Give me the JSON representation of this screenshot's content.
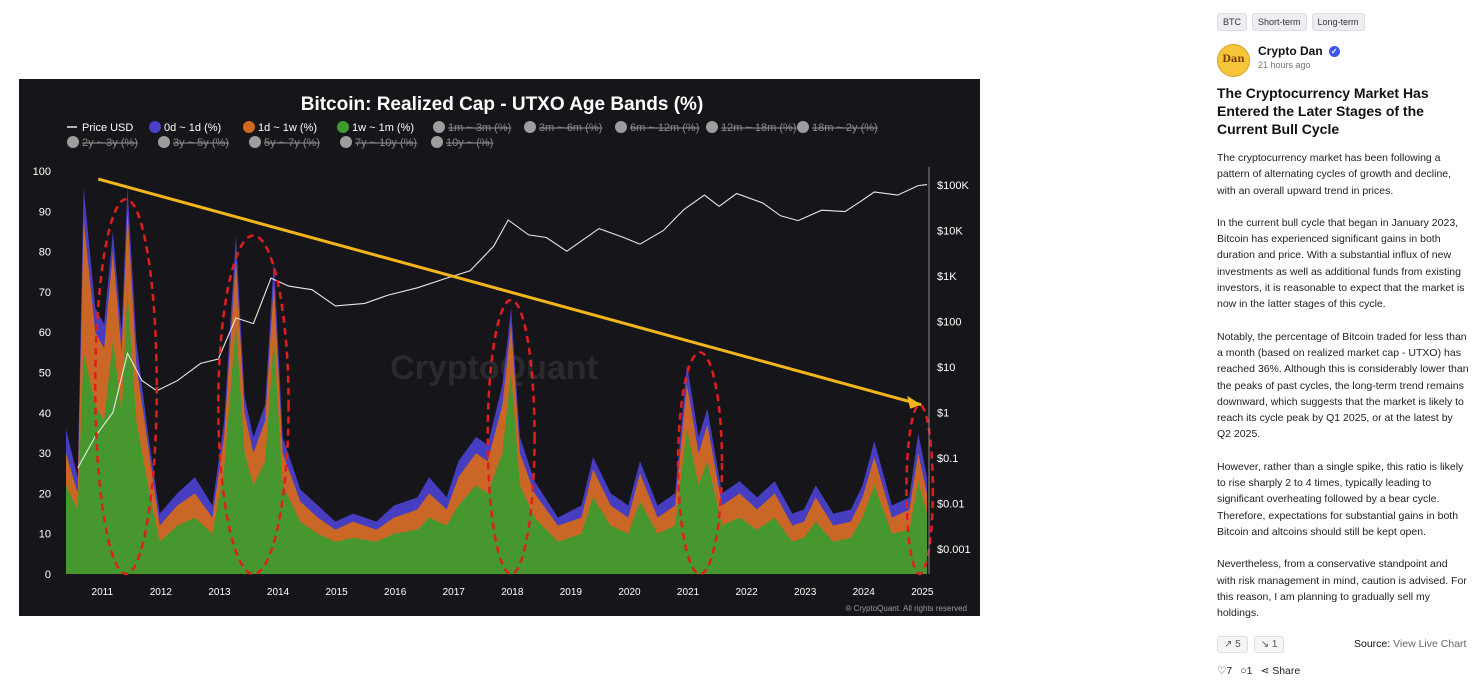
{
  "tags": [
    "BTC",
    "Short-term",
    "Long-term"
  ],
  "author": {
    "name": "Crypto Dan",
    "time": "21 hours ago",
    "avatar_text": "Dan"
  },
  "post_title": "The Cryptocurrency Market Has Entered the Later Stages of the Current Bull Cycle",
  "paragraphs": [
    "The cryptocurrency market has been following a pattern of alternating cycles of growth and decline, with an overall upward trend in prices.",
    "In the current bull cycle that began in January 2023, Bitcoin has experienced significant gains in both duration and price. With a substantial influx of new investments as well as additional funds from existing investors, it is reasonable to expect that the market is now in the latter stages of this cycle.",
    "Notably, the percentage of Bitcoin traded for less than a month (based on realized market cap - UTXO) has reached 36%. Although this is considerably lower than the peaks of past cycles, the long-term trend remains downward, which suggests that the market is likely to reach its cycle peak by Q1 2025, or at the latest by Q2 2025.",
    "However, rather than a single spike, this ratio is likely to rise sharply 2 to 4 times, typically leading to significant overheating followed by a bear cycle. Therefore, expectations for substantial gains in both Bitcoin and altcoins should still be kept open.",
    "Nevertheless, from a conservative standpoint and with risk management in mind, caution is advised. For this reason, I am planning to gradually sell my holdings."
  ],
  "votes": {
    "up": "5",
    "down": "1"
  },
  "source": {
    "label": "Source:",
    "link": "View Live Chart"
  },
  "actions": {
    "likes": "7",
    "comments": "1",
    "share": "Share"
  },
  "colors": {
    "price": "#e8e8e8",
    "band_0d_1d": "#4a3fc9",
    "band_1d_1w": "#d2691e",
    "band_1w_1m": "#3f9a2f",
    "trend": "#f2b51b",
    "circle": "#e01e1e"
  },
  "chart_data": {
    "type": "area",
    "title": "Bitcoin: Realized Cap - UTXO Age Bands (%)",
    "watermark": "CryptoQuant",
    "credit": "® CryptoQuant. All rights reserved",
    "legend_active": [
      {
        "label": "Price USD",
        "kind": "line"
      },
      {
        "label": "0d ~ 1d (%)",
        "kind": "dot"
      },
      {
        "label": "1d ~ 1w (%)",
        "kind": "dot"
      },
      {
        "label": "1w ~ 1m (%)",
        "kind": "dot"
      }
    ],
    "legend_disabled_row1": [
      "1m ~ 3m (%)",
      "3m ~ 6m (%)",
      "6m ~ 12m (%)",
      "12m ~ 18m (%)",
      "18m ~ 2y (%)"
    ],
    "legend_disabled_row2": [
      "2y ~ 3y (%)",
      "3y ~ 5y (%)",
      "5y ~ 7y (%)",
      "7y ~ 10y (%)",
      "10y ~ (%)"
    ],
    "left_axis": {
      "min": 0,
      "max": 100,
      "ticks": [
        "100",
        "90",
        "80",
        "70",
        "60",
        "50",
        "40",
        "30",
        "20",
        "10",
        "0"
      ]
    },
    "right_axis": {
      "ticks": [
        "$100K",
        "$10K",
        "$1K",
        "$100",
        "$10",
        "$1",
        "$0.1",
        "$0.01",
        "$0.001"
      ]
    },
    "x_axis": {
      "min": 2010.4,
      "max": 2025.1,
      "ticks": [
        "2011",
        "2012",
        "2013",
        "2014",
        "2015",
        "2016",
        "2017",
        "2018",
        "2019",
        "2020",
        "2021",
        "2022",
        "2023",
        "2024",
        "2025"
      ]
    },
    "series": [
      {
        "name": "1w ~ 1m (%)",
        "points": [
          [
            2010.4,
            22
          ],
          [
            2010.6,
            16
          ],
          [
            2010.7,
            55
          ],
          [
            2010.9,
            42
          ],
          [
            2011.05,
            38
          ],
          [
            2011.2,
            58
          ],
          [
            2011.35,
            40
          ],
          [
            2011.45,
            70
          ],
          [
            2011.6,
            38
          ],
          [
            2011.8,
            22
          ],
          [
            2012.0,
            8
          ],
          [
            2012.3,
            12
          ],
          [
            2012.6,
            14
          ],
          [
            2012.9,
            10
          ],
          [
            2013.1,
            26
          ],
          [
            2013.3,
            62
          ],
          [
            2013.45,
            30
          ],
          [
            2013.6,
            22
          ],
          [
            2013.8,
            28
          ],
          [
            2013.95,
            58
          ],
          [
            2014.1,
            22
          ],
          [
            2014.4,
            13
          ],
          [
            2014.7,
            10
          ],
          [
            2015.0,
            8
          ],
          [
            2015.3,
            9
          ],
          [
            2015.7,
            8
          ],
          [
            2016.0,
            10
          ],
          [
            2016.4,
            11
          ],
          [
            2016.6,
            14
          ],
          [
            2016.9,
            12
          ],
          [
            2017.1,
            17
          ],
          [
            2017.4,
            22
          ],
          [
            2017.6,
            20
          ],
          [
            2017.85,
            30
          ],
          [
            2018.0,
            50
          ],
          [
            2018.15,
            22
          ],
          [
            2018.4,
            14
          ],
          [
            2018.8,
            8
          ],
          [
            2019.2,
            10
          ],
          [
            2019.4,
            19
          ],
          [
            2019.7,
            12
          ],
          [
            2020.0,
            10
          ],
          [
            2020.2,
            18
          ],
          [
            2020.5,
            10
          ],
          [
            2020.8,
            12
          ],
          [
            2021.0,
            36
          ],
          [
            2021.2,
            22
          ],
          [
            2021.35,
            28
          ],
          [
            2021.6,
            12
          ],
          [
            2021.9,
            14
          ],
          [
            2022.2,
            11
          ],
          [
            2022.5,
            14
          ],
          [
            2022.8,
            8
          ],
          [
            2023.0,
            9
          ],
          [
            2023.2,
            13
          ],
          [
            2023.5,
            8
          ],
          [
            2023.8,
            9
          ],
          [
            2024.0,
            14
          ],
          [
            2024.2,
            22
          ],
          [
            2024.5,
            10
          ],
          [
            2024.8,
            11
          ],
          [
            2024.95,
            23
          ],
          [
            2025.1,
            15
          ]
        ]
      },
      {
        "name": "1d ~ 1w (%)",
        "points": [
          [
            2010.4,
            30
          ],
          [
            2010.6,
            20
          ],
          [
            2010.7,
            88
          ],
          [
            2010.9,
            60
          ],
          [
            2011.05,
            56
          ],
          [
            2011.2,
            80
          ],
          [
            2011.35,
            55
          ],
          [
            2011.45,
            90
          ],
          [
            2011.6,
            52
          ],
          [
            2011.8,
            32
          ],
          [
            2012.0,
            12
          ],
          [
            2012.3,
            17
          ],
          [
            2012.6,
            20
          ],
          [
            2012.9,
            14
          ],
          [
            2013.1,
            34
          ],
          [
            2013.3,
            78
          ],
          [
            2013.45,
            40
          ],
          [
            2013.6,
            30
          ],
          [
            2013.8,
            38
          ],
          [
            2013.95,
            72
          ],
          [
            2014.1,
            30
          ],
          [
            2014.4,
            18
          ],
          [
            2014.7,
            14
          ],
          [
            2015.0,
            11
          ],
          [
            2015.3,
            13
          ],
          [
            2015.7,
            11
          ],
          [
            2016.0,
            14
          ],
          [
            2016.4,
            16
          ],
          [
            2016.6,
            20
          ],
          [
            2016.9,
            16
          ],
          [
            2017.1,
            24
          ],
          [
            2017.4,
            30
          ],
          [
            2017.6,
            28
          ],
          [
            2017.85,
            42
          ],
          [
            2018.0,
            62
          ],
          [
            2018.15,
            30
          ],
          [
            2018.4,
            20
          ],
          [
            2018.8,
            12
          ],
          [
            2019.2,
            14
          ],
          [
            2019.4,
            26
          ],
          [
            2019.7,
            17
          ],
          [
            2020.0,
            14
          ],
          [
            2020.2,
            25
          ],
          [
            2020.5,
            14
          ],
          [
            2020.8,
            17
          ],
          [
            2021.0,
            47
          ],
          [
            2021.2,
            30
          ],
          [
            2021.35,
            37
          ],
          [
            2021.6,
            17
          ],
          [
            2021.9,
            20
          ],
          [
            2022.2,
            16
          ],
          [
            2022.5,
            20
          ],
          [
            2022.8,
            12
          ],
          [
            2023.0,
            13
          ],
          [
            2023.2,
            19
          ],
          [
            2023.5,
            12
          ],
          [
            2023.8,
            13
          ],
          [
            2024.0,
            19
          ],
          [
            2024.2,
            29
          ],
          [
            2024.5,
            14
          ],
          [
            2024.8,
            16
          ],
          [
            2024.95,
            30
          ],
          [
            2025.1,
            20
          ]
        ]
      },
      {
        "name": "0d ~ 1d (%)",
        "points": [
          [
            2010.4,
            36
          ],
          [
            2010.6,
            24
          ],
          [
            2010.7,
            96
          ],
          [
            2010.9,
            66
          ],
          [
            2011.05,
            62
          ],
          [
            2011.2,
            85
          ],
          [
            2011.35,
            60
          ],
          [
            2011.45,
            96
          ],
          [
            2011.6,
            58
          ],
          [
            2011.8,
            35
          ],
          [
            2012.0,
            15
          ],
          [
            2012.3,
            20
          ],
          [
            2012.6,
            24
          ],
          [
            2012.9,
            17
          ],
          [
            2013.1,
            38
          ],
          [
            2013.3,
            84
          ],
          [
            2013.45,
            44
          ],
          [
            2013.6,
            34
          ],
          [
            2013.8,
            42
          ],
          [
            2013.95,
            78
          ],
          [
            2014.1,
            34
          ],
          [
            2014.4,
            21
          ],
          [
            2014.7,
            17
          ],
          [
            2015.0,
            13
          ],
          [
            2015.3,
            15
          ],
          [
            2015.7,
            13
          ],
          [
            2016.0,
            17
          ],
          [
            2016.4,
            19
          ],
          [
            2016.6,
            24
          ],
          [
            2016.9,
            19
          ],
          [
            2017.1,
            28
          ],
          [
            2017.4,
            34
          ],
          [
            2017.6,
            32
          ],
          [
            2017.85,
            47
          ],
          [
            2018.0,
            66
          ],
          [
            2018.15,
            34
          ],
          [
            2018.4,
            23
          ],
          [
            2018.8,
            14
          ],
          [
            2019.2,
            17
          ],
          [
            2019.4,
            29
          ],
          [
            2019.7,
            20
          ],
          [
            2020.0,
            17
          ],
          [
            2020.2,
            28
          ],
          [
            2020.5,
            17
          ],
          [
            2020.8,
            20
          ],
          [
            2021.0,
            52
          ],
          [
            2021.2,
            34
          ],
          [
            2021.35,
            41
          ],
          [
            2021.6,
            20
          ],
          [
            2021.9,
            23
          ],
          [
            2022.2,
            19
          ],
          [
            2022.5,
            23
          ],
          [
            2022.8,
            15
          ],
          [
            2023.0,
            16
          ],
          [
            2023.2,
            22
          ],
          [
            2023.5,
            15
          ],
          [
            2023.8,
            16
          ],
          [
            2024.0,
            22
          ],
          [
            2024.2,
            33
          ],
          [
            2024.5,
            17
          ],
          [
            2024.8,
            19
          ],
          [
            2024.95,
            35
          ],
          [
            2025.1,
            24
          ]
        ]
      },
      {
        "name": "Price USD",
        "axis": "right",
        "points": [
          [
            2010.6,
            0.06
          ],
          [
            2010.9,
            0.3
          ],
          [
            2011.2,
            1
          ],
          [
            2011.45,
            20
          ],
          [
            2011.7,
            5
          ],
          [
            2011.95,
            3
          ],
          [
            2012.3,
            5
          ],
          [
            2012.7,
            12
          ],
          [
            2013.0,
            15
          ],
          [
            2013.3,
            120
          ],
          [
            2013.6,
            90
          ],
          [
            2013.9,
            900
          ],
          [
            2014.2,
            600
          ],
          [
            2014.6,
            500
          ],
          [
            2015.0,
            220
          ],
          [
            2015.5,
            250
          ],
          [
            2015.9,
            380
          ],
          [
            2016.4,
            550
          ],
          [
            2016.9,
            900
          ],
          [
            2017.3,
            1300
          ],
          [
            2017.7,
            4500
          ],
          [
            2017.95,
            17000
          ],
          [
            2018.3,
            8000
          ],
          [
            2018.6,
            7000
          ],
          [
            2018.95,
            3500
          ],
          [
            2019.5,
            11000
          ],
          [
            2019.9,
            7200
          ],
          [
            2020.2,
            5000
          ],
          [
            2020.6,
            10000
          ],
          [
            2020.95,
            29000
          ],
          [
            2021.3,
            60000
          ],
          [
            2021.55,
            34000
          ],
          [
            2021.85,
            65000
          ],
          [
            2022.3,
            40000
          ],
          [
            2022.6,
            21000
          ],
          [
            2022.9,
            16500
          ],
          [
            2023.3,
            28000
          ],
          [
            2023.7,
            26000
          ],
          [
            2023.95,
            42000
          ],
          [
            2024.2,
            70000
          ],
          [
            2024.6,
            60000
          ],
          [
            2024.95,
            97000
          ],
          [
            2025.1,
            102000
          ]
        ]
      }
    ],
    "trendline": {
      "from": [
        2010.95,
        98
      ],
      "to": [
        2025.0,
        42
      ]
    },
    "highlighted_peaks": [
      {
        "from": 2010.9,
        "to": 2011.95,
        "top": 93
      },
      {
        "from": 2013.0,
        "to": 2014.2,
        "top": 84
      },
      {
        "from": 2017.6,
        "to": 2018.4,
        "top": 68
      },
      {
        "from": 2020.85,
        "to": 2021.6,
        "top": 55
      },
      {
        "from": 2024.75,
        "to": 2025.2,
        "top": 42
      }
    ]
  }
}
